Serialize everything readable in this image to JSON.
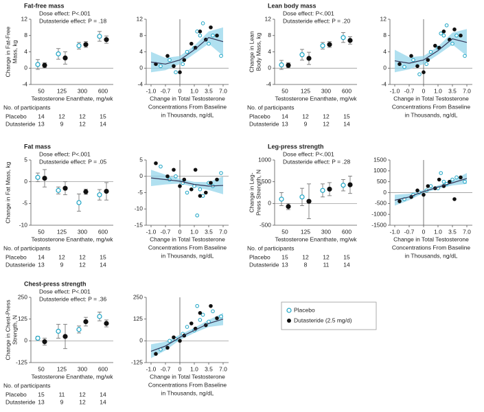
{
  "chart_data": [
    {
      "type": "dose",
      "title": "Fat-free mass",
      "annotations": [
        "Dose effect: P<.001",
        "Dutasteride effect: P = .18"
      ],
      "categories": [
        "50",
        "125",
        "300",
        "600"
      ],
      "xlabel": "Testosterone Enanthate, mg/wk",
      "ylabel": [
        "Change in Fat-Free",
        "Mass, kg"
      ],
      "ylim": [
        -4,
        12
      ],
      "yticks": [
        -4,
        0,
        4,
        8,
        12
      ],
      "series": [
        {
          "name": "Placebo",
          "color": "#1aa3c4",
          "values": [
            0.9,
            3.5,
            5.5,
            7.8
          ],
          "errors": [
            1.2,
            1.3,
            0.8,
            1.2
          ]
        },
        {
          "name": "Dutasteride (2.5 mg/d)",
          "color": "#111111",
          "values": [
            0.7,
            2.5,
            5.8,
            7.0
          ],
          "errors": [
            0.6,
            1.5,
            0.7,
            0.9
          ]
        }
      ],
      "participants": {
        "label": "No. of participants",
        "rows": [
          {
            "name": "Placebo",
            "counts": [
              14,
              12,
              12,
              15
            ]
          },
          {
            "name": "Dutasteride",
            "counts": [
              13,
              9,
              12,
              14
            ]
          }
        ]
      }
    },
    {
      "type": "scatter",
      "xlabel": [
        "Change in Total Testosterone",
        "Concentrations From Baseline",
        "in Thousands, ng/dL"
      ],
      "xticks": [
        {
          "value": -1,
          "label": "-1.0"
        },
        {
          "value": -0.7,
          "label": "-0.7"
        },
        0,
        {
          "value": 1,
          "label": "1.0"
        },
        {
          "value": 3.5,
          "label": "3.5"
        },
        {
          "value": 7,
          "label": "7.0"
        }
      ],
      "ylim": [
        -4,
        12
      ],
      "yticks": [
        -4,
        0,
        4,
        8,
        12
      ],
      "series": [
        {
          "color": "#1aa3c4",
          "x": [
            -0.8,
            -0.5,
            -0.2,
            0.2,
            0.5,
            1.0,
            1.5,
            2.0,
            2.5,
            3.5,
            4.5,
            6.5
          ],
          "values": [
            0.5,
            2,
            -1,
            1,
            4,
            5,
            9,
            8,
            11,
            6,
            8,
            3
          ]
        },
        {
          "color": "#111111",
          "x": [
            -0.9,
            -0.6,
            -0.3,
            0,
            0.3,
            0.8,
            1.2,
            2,
            3,
            4,
            5.5
          ],
          "values": [
            1,
            3,
            0.5,
            -1,
            2,
            6,
            5,
            9,
            7,
            10,
            8
          ]
        }
      ],
      "fit": {
        "x": [
          -1,
          -0.7,
          0,
          1,
          3.5,
          7
        ],
        "y": [
          1.5,
          1,
          2,
          4.5,
          7.5,
          6.5
        ],
        "lower": [
          -1,
          -0.5,
          1,
          3.5,
          6,
          3
        ],
        "upper": [
          4,
          2.5,
          3,
          5.5,
          9,
          10
        ]
      }
    },
    {
      "type": "dose",
      "title": "Lean body mass",
      "annotations": [
        "Dose effect: P<.001",
        "Dutasteride effect: P = .20"
      ],
      "categories": [
        "50",
        "125",
        "300",
        "600"
      ],
      "xlabel": "Testosterone Enanthate, mg/wk",
      "ylabel": [
        "Change in Lean",
        "Body Mass, kg"
      ],
      "ylim": [
        -4,
        12
      ],
      "yticks": [
        -4,
        0,
        4,
        8,
        12
      ],
      "series": [
        {
          "name": "Placebo",
          "color": "#1aa3c4",
          "values": [
            0.8,
            3.3,
            5.5,
            7.5
          ],
          "errors": [
            1.1,
            1.3,
            0.8,
            1.2
          ]
        },
        {
          "name": "Dutasteride (2.5 mg/d)",
          "color": "#111111",
          "values": [
            0.7,
            2.4,
            5.8,
            6.8
          ],
          "errors": [
            0.6,
            1.5,
            0.7,
            0.9
          ]
        }
      ],
      "participants": {
        "label": "No. of participants",
        "rows": [
          {
            "name": "Placebo",
            "counts": [
              14,
              12,
              12,
              15
            ]
          },
          {
            "name": "Dutasteride",
            "counts": [
              13,
              9,
              12,
              14
            ]
          }
        ]
      }
    },
    {
      "type": "scatter",
      "xlabel": [
        "Change in Total Testosterone",
        "Concentrations From Baseline",
        "in Thousands, ng/dL"
      ],
      "xticks": [
        {
          "value": -1,
          "label": "-1.0"
        },
        {
          "value": -0.7,
          "label": "-0.7"
        },
        0,
        {
          "value": 1,
          "label": "1.0"
        },
        {
          "value": 3.5,
          "label": "3.5"
        },
        {
          "value": 7,
          "label": "7.0"
        }
      ],
      "ylim": [
        -4,
        12
      ],
      "yticks": [
        -4,
        0,
        4,
        8,
        12
      ],
      "series": [
        {
          "color": "#1aa3c4",
          "x": [
            -0.8,
            -0.5,
            -0.2,
            0.2,
            0.5,
            1.0,
            1.5,
            2.0,
            2.5,
            3.5,
            4.5,
            6.5
          ],
          "values": [
            0.3,
            2,
            -1.5,
            1,
            4,
            5,
            8.5,
            8,
            10.5,
            6,
            8,
            3
          ]
        },
        {
          "color": "#111111",
          "x": [
            -0.9,
            -0.6,
            -0.3,
            0,
            0.3,
            0.8,
            1.2,
            2,
            3,
            4,
            5.5
          ],
          "values": [
            1,
            3,
            0.5,
            -1,
            2,
            5.5,
            5,
            9,
            7,
            9.5,
            8
          ]
        }
      ],
      "fit": {
        "x": [
          -1,
          -0.7,
          0,
          1,
          3.5,
          7
        ],
        "y": [
          1.8,
          1.2,
          2,
          4.3,
          7.2,
          6.3
        ],
        "lower": [
          -1,
          -0.3,
          1,
          3.3,
          5.8,
          3
        ],
        "upper": [
          4.5,
          2.7,
          3,
          5.3,
          8.7,
          9.6
        ]
      }
    },
    {
      "type": "dose",
      "title": "Fat mass",
      "annotations": [
        "Dose effect: P<.001",
        "Dutasteride effect: P = .05"
      ],
      "categories": [
        "50",
        "125",
        "300",
        "600"
      ],
      "xlabel": "Testosterone Enanthate, mg/wk",
      "ylabel": [
        "Change in Fat Mass, kg"
      ],
      "ylim": [
        -10,
        5
      ],
      "yticks": [
        -10,
        -5,
        0,
        5
      ],
      "series": [
        {
          "name": "Placebo",
          "color": "#1aa3c4",
          "values": [
            1.0,
            -2.0,
            -4.8,
            -3.0
          ],
          "errors": [
            1.0,
            0.8,
            2.0,
            1.2
          ]
        },
        {
          "name": "Dutasteride (2.5 mg/d)",
          "color": "#111111",
          "values": [
            0.8,
            -1.5,
            -2.3,
            -2.2
          ],
          "errors": [
            2.0,
            1.5,
            0.6,
            2.0
          ]
        }
      ],
      "participants": {
        "label": "No. of participants",
        "rows": [
          {
            "name": "Placebo",
            "counts": [
              14,
              12,
              12,
              15
            ]
          },
          {
            "name": "Dutasteride",
            "counts": [
              13,
              9,
              12,
              14
            ]
          }
        ]
      }
    },
    {
      "type": "scatter",
      "xlabel": [
        "Change in Total Testosterone",
        "Concentrations From Baseline",
        "in Thousands, ng/dL"
      ],
      "xticks": [
        {
          "value": -1,
          "label": "-1.0"
        },
        {
          "value": -0.7,
          "label": "-0.7"
        },
        0,
        {
          "value": 1,
          "label": "1.0"
        },
        {
          "value": 3.5,
          "label": "3.5"
        },
        {
          "value": 7,
          "label": "7.0"
        }
      ],
      "ylim": [
        -15,
        5
      ],
      "yticks": [
        -15,
        -10,
        -5,
        0,
        5
      ],
      "series": [
        {
          "color": "#1aa3c4",
          "x": [
            -0.8,
            -0.5,
            -0.2,
            0.2,
            0.5,
            1.0,
            1.5,
            2.0,
            2.5,
            3.5,
            4.5,
            6.5
          ],
          "values": [
            3,
            -1,
            0,
            -2,
            -5,
            -3,
            -12,
            -4,
            -6,
            -2,
            -3,
            1
          ]
        },
        {
          "color": "#111111",
          "x": [
            -0.9,
            -0.6,
            -0.3,
            0,
            0.3,
            0.8,
            1.2,
            2,
            3,
            4,
            5.5
          ],
          "values": [
            4,
            0,
            2,
            -3,
            -1,
            -4,
            2,
            -6,
            -5,
            -2,
            -1
          ]
        }
      ],
      "fit": {
        "x": [
          -1,
          -0.7,
          0,
          1,
          3.5,
          7
        ],
        "y": [
          -0.5,
          -1,
          -1.5,
          -2.5,
          -3,
          -2.8
        ],
        "lower": [
          -3,
          -2.5,
          -2.2,
          -3.3,
          -4.2,
          -5.5
        ],
        "upper": [
          2,
          0.5,
          -0.8,
          -1.7,
          -1.8,
          0
        ]
      }
    },
    {
      "type": "dose",
      "title": "Leg-press strength",
      "annotations": [
        "Dose effect: P<.001",
        "Dutasteride effect: P = .28"
      ],
      "categories": [
        "50",
        "125",
        "300",
        "600"
      ],
      "xlabel": "Testosterone Enanthate, mg/wk",
      "ylabel": [
        "Change in Leg-",
        "Press Strength, N"
      ],
      "ylim": [
        -500,
        1000
      ],
      "yticks": [
        -500,
        0,
        500,
        1000
      ],
      "series": [
        {
          "name": "Placebo",
          "color": "#1aa3c4",
          "values": [
            100,
            150,
            300,
            420
          ],
          "errors": [
            150,
            200,
            150,
            130
          ]
        },
        {
          "name": "Dutasteride (2.5 mg/d)",
          "color": "#111111",
          "values": [
            -70,
            50,
            330,
            430
          ],
          "errors": [
            70,
            400,
            150,
            200
          ]
        }
      ],
      "participants": {
        "label": "No. of participants",
        "rows": [
          {
            "name": "Placebo",
            "counts": [
              15,
              12,
              12,
              15
            ]
          },
          {
            "name": "Dutasteride",
            "counts": [
              13,
              8,
              11,
              14
            ]
          }
        ]
      }
    },
    {
      "type": "scatter",
      "xlabel": [
        "Change in Total Testosterone",
        "Concentrations From Baseline",
        "in Thousands, ng/dL"
      ],
      "xticks": [
        {
          "value": -1,
          "label": "-1.0"
        },
        {
          "value": -0.7,
          "label": "-0.7"
        },
        0,
        {
          "value": 1,
          "label": "1.0"
        },
        {
          "value": 3.5,
          "label": "3.5"
        },
        {
          "value": 7,
          "label": "7.0"
        }
      ],
      "ylim": [
        -1500,
        1500
      ],
      "yticks": [
        -1500,
        -1000,
        -500,
        0,
        500,
        1000,
        1500
      ],
      "series": [
        {
          "color": "#1aa3c4",
          "x": [
            -0.8,
            -0.5,
            -0.2,
            0.2,
            0.5,
            1.0,
            1.5,
            2.0,
            2.5,
            3.5,
            4.5,
            6.5
          ],
          "values": [
            -300,
            -100,
            0,
            100,
            300,
            200,
            900,
            500,
            400,
            600,
            700,
            500
          ]
        },
        {
          "color": "#111111",
          "x": [
            -0.9,
            -0.6,
            -0.3,
            0,
            0.3,
            0.8,
            1.2,
            2,
            3,
            4,
            5.5
          ],
          "values": [
            -400,
            -200,
            100,
            -100,
            300,
            200,
            600,
            300,
            500,
            -300,
            700
          ]
        }
      ],
      "fit": {
        "x": [
          -1,
          -0.7,
          0,
          1,
          3.5,
          7
        ],
        "y": [
          -350,
          -200,
          50,
          250,
          450,
          650
        ],
        "lower": [
          -600,
          -350,
          -20,
          170,
          330,
          400
        ],
        "upper": [
          -100,
          -50,
          120,
          330,
          570,
          900
        ]
      }
    },
    {
      "type": "dose",
      "title": "Chest-press strength",
      "annotations": [
        "Dose effect: P<.001",
        "Dutasteride effect: P = .36"
      ],
      "categories": [
        "50",
        "125",
        "300",
        "600"
      ],
      "xlabel": "Testosterone Enanthate, mg/wk",
      "ylabel": [
        "Change in Chest-Press",
        "Strength, N"
      ],
      "ylim": [
        -125,
        250
      ],
      "yticks": [
        -125,
        0,
        125,
        250
      ],
      "series": [
        {
          "name": "Placebo",
          "color": "#1aa3c4",
          "values": [
            15,
            55,
            65,
            140
          ],
          "errors": [
            10,
            40,
            20,
            25
          ]
        },
        {
          "name": "Dutasteride (2.5 mg/d)",
          "color": "#111111",
          "values": [
            -5,
            25,
            110,
            100
          ],
          "errors": [
            20,
            70,
            25,
            20
          ]
        }
      ],
      "participants": {
        "label": "No. of participants",
        "rows": [
          {
            "name": "Placebo",
            "counts": [
              15,
              11,
              12,
              14
            ]
          },
          {
            "name": "Dutasteride",
            "counts": [
              13,
              9,
              12,
              14
            ]
          }
        ]
      }
    },
    {
      "type": "scatter",
      "xlabel": [
        "Change in Total Testosterone",
        "Concentrations From Baseline",
        "in Thousands, ng/dL"
      ],
      "xticks": [
        {
          "value": -1,
          "label": "-1.0"
        },
        {
          "value": -0.7,
          "label": "-0.7"
        },
        0,
        {
          "value": 1,
          "label": "1.0"
        },
        {
          "value": 3.5,
          "label": "3.5"
        },
        {
          "value": 7,
          "label": "7.0"
        }
      ],
      "ylim": [
        -125,
        250
      ],
      "yticks": [
        -125,
        0,
        125,
        250
      ],
      "series": [
        {
          "color": "#1aa3c4",
          "x": [
            -0.8,
            -0.5,
            -0.2,
            0.2,
            0.5,
            1.0,
            1.5,
            2.0,
            2.5,
            3.5,
            4.5,
            6.5
          ],
          "values": [
            -50,
            0,
            10,
            40,
            80,
            60,
            200,
            120,
            150,
            110,
            170,
            140
          ]
        },
        {
          "color": "#111111",
          "x": [
            -0.9,
            -0.6,
            -0.3,
            0,
            0.3,
            0.8,
            1.2,
            2,
            3,
            4,
            5.5
          ],
          "values": [
            -75,
            -40,
            20,
            0,
            30,
            100,
            70,
            160,
            90,
            200,
            130
          ]
        }
      ],
      "fit": {
        "x": [
          -1,
          -0.7,
          0,
          1,
          3.5,
          7
        ],
        "y": [
          -60,
          -30,
          20,
          60,
          100,
          125
        ],
        "lower": [
          -100,
          -55,
          5,
          45,
          80,
          90
        ],
        "upper": [
          -20,
          -5,
          35,
          75,
          120,
          160
        ]
      }
    }
  ]
}
